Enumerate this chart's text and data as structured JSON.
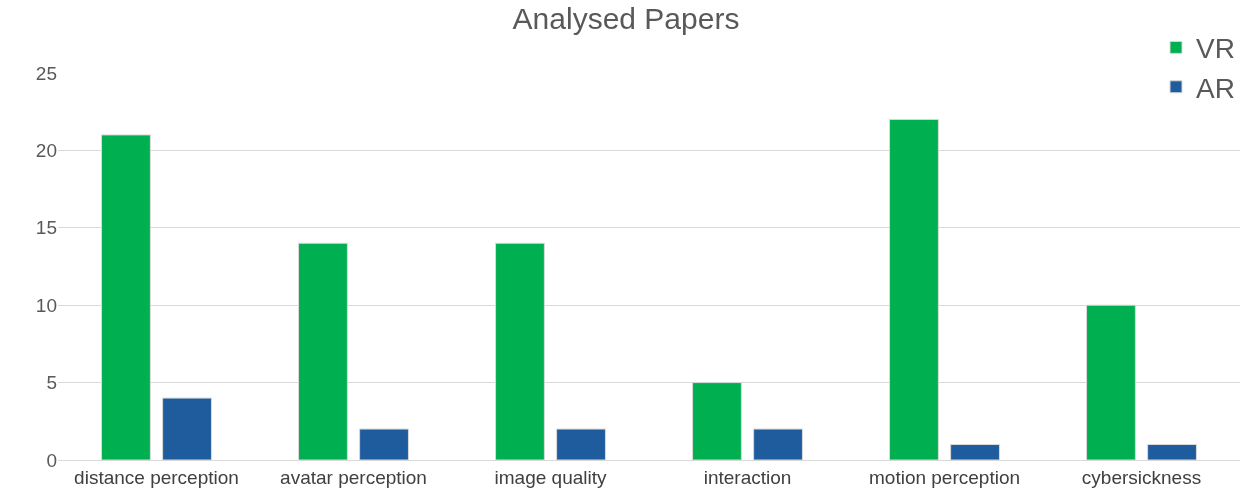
{
  "chart_data": {
    "type": "bar",
    "title": "Analysed Papers",
    "categories": [
      "distance perception",
      "avatar perception",
      "image quality",
      "interaction",
      "motion perception",
      "cybersickness"
    ],
    "series": [
      {
        "name": "VR",
        "color": "#00b050",
        "values": [
          21,
          14,
          14,
          5,
          22,
          10
        ]
      },
      {
        "name": "AR",
        "color": "#1f5c9e",
        "values": [
          4,
          2,
          2,
          2,
          1,
          1
        ]
      }
    ],
    "ylim": [
      0,
      25
    ],
    "yticks": [
      0,
      5,
      10,
      15,
      20,
      25
    ],
    "grid": "y",
    "legend": "top right"
  }
}
